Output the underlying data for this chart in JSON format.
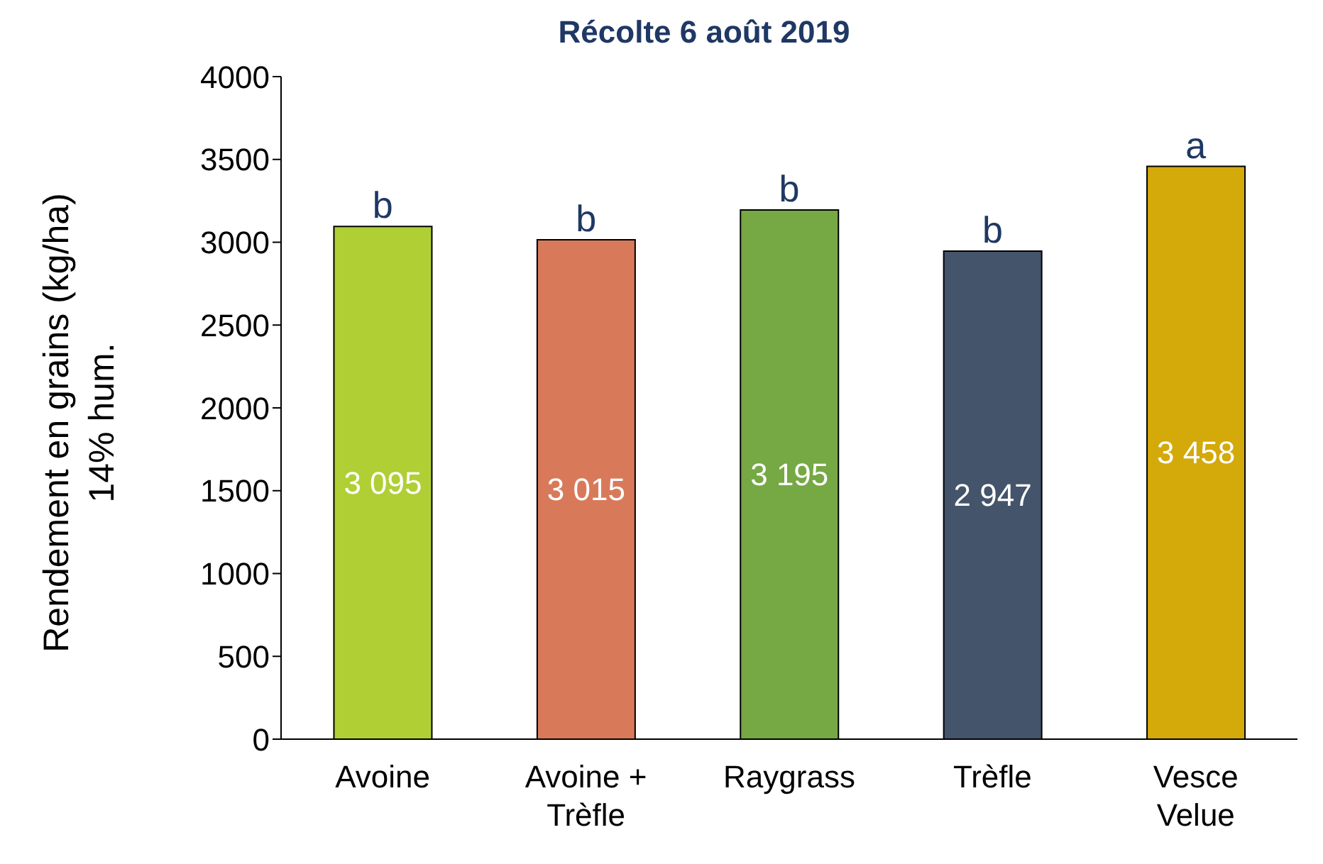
{
  "chart_data": {
    "type": "bar",
    "title": "Récolte 6 août 2019",
    "ylabel": "Rendement en grains (kg/ha)\n14% hum.",
    "categories": [
      "Avoine",
      "Avoine + Trèfle",
      "Raygrass",
      "Trèfle",
      "Vesce Velue"
    ],
    "values": [
      3095,
      3015,
      3195,
      2947,
      3458
    ],
    "colors": [
      "#b0cf34",
      "#d87a5a",
      "#76a844",
      "#44546a",
      "#d4a90a"
    ],
    "value_labels": [
      "3 095",
      "3 015",
      "3 195",
      "2 947",
      "3 458"
    ],
    "annotations": [
      {
        "text": "b",
        "x": "Avoine",
        "y": 3095
      },
      {
        "text": "b",
        "x": "Avoine + Trèfle",
        "y": 3015
      },
      {
        "text": "b",
        "x": "Raygrass",
        "y": 3195
      },
      {
        "text": "b",
        "x": "Trèfle",
        "y": 2947
      },
      {
        "text": "a",
        "x": "Vesce Velue",
        "y": 3458
      }
    ],
    "ylim": [
      0,
      4000
    ],
    "yticks": [
      0,
      500,
      1000,
      1500,
      2000,
      2500,
      3000,
      3500,
      4000
    ],
    "grid": false,
    "legend": false
  }
}
